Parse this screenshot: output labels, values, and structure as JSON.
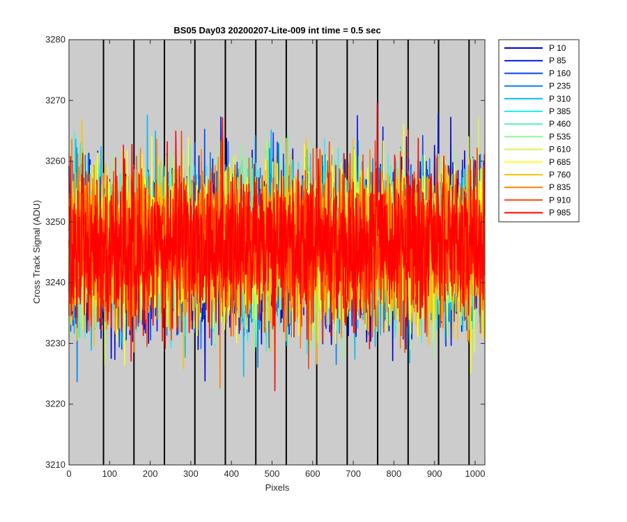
{
  "chart_data": {
    "type": "line",
    "title": "BS05 Day03 20200207-Lite-009 int time = 0.5 sec",
    "xlabel": "Pixels",
    "ylabel": "Cross Track Signal (ADU)",
    "xlim": [
      0,
      1024
    ],
    "ylim": [
      3210,
      3280
    ],
    "x_ticks": [
      0,
      100,
      200,
      300,
      400,
      500,
      600,
      700,
      800,
      900,
      1000
    ],
    "y_ticks": [
      3210,
      3220,
      3230,
      3240,
      3250,
      3260,
      3270,
      3280
    ],
    "x_tick_labels": [
      "0",
      "100",
      "200",
      "300",
      "400",
      "500",
      "600",
      "700",
      "800",
      "900",
      "1000"
    ],
    "y_tick_labels": [
      "3210",
      "3220",
      "3230",
      "3240",
      "3250",
      "3260",
      "3270",
      "3280"
    ],
    "vertical_dividers": [
      85,
      160,
      235,
      310,
      385,
      460,
      535,
      610,
      685,
      760,
      835,
      910,
      985
    ],
    "background_color": "#cccccc",
    "grid": false,
    "legend_position": "outside-top-right",
    "signal_mean": 3246,
    "signal_spread": 8,
    "num_points": 1024,
    "series": [
      {
        "name": "P 10",
        "color": "#0000cc"
      },
      {
        "name": "P 85",
        "color": "#0014e6"
      },
      {
        "name": "P 160",
        "color": "#0044f0"
      },
      {
        "name": "P 235",
        "color": "#0080f0"
      },
      {
        "name": "P 310",
        "color": "#00bbf0"
      },
      {
        "name": "P 385",
        "color": "#20f0f0"
      },
      {
        "name": "P 460",
        "color": "#50f0c0"
      },
      {
        "name": "P 535",
        "color": "#90f890"
      },
      {
        "name": "P 610",
        "color": "#d0f850"
      },
      {
        "name": "P 685",
        "color": "#ffff20"
      },
      {
        "name": "P 760",
        "color": "#ffc000"
      },
      {
        "name": "P 835",
        "color": "#ff8000"
      },
      {
        "name": "P 910",
        "color": "#ff4000"
      },
      {
        "name": "P 985",
        "color": "#ff0000"
      }
    ]
  }
}
